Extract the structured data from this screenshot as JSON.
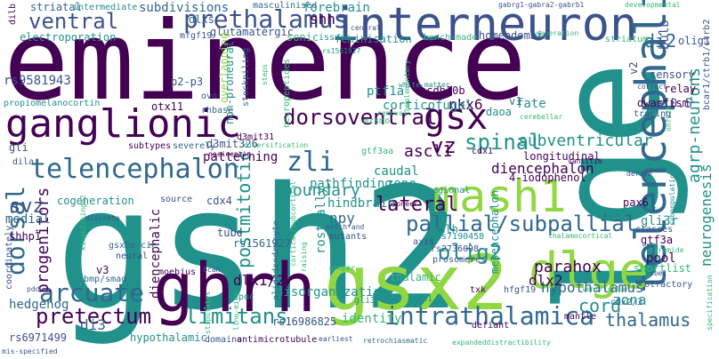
{
  "palette": {
    "purple": "#440154",
    "indigo": "#3b528b",
    "blue": "#31688e",
    "teal": "#21918c",
    "green": "#35b779",
    "lime": "#90d743",
    "yellow": "#fde725"
  },
  "words": [
    {
      "text": "eminence",
      "color": "purple"
    },
    {
      "text": "gsh2",
      "color": "teal"
    },
    {
      "text": "lge",
      "color": "teal"
    },
    {
      "text": "interneuron",
      "color": "indigo"
    },
    {
      "text": "ghrh",
      "color": "purple"
    },
    {
      "text": "gsx2",
      "color": "lime"
    },
    {
      "text": "telencephalic",
      "color": "blue"
    },
    {
      "text": "prethalamus",
      "color": "indigo"
    },
    {
      "text": "ganglionic",
      "color": "purple"
    },
    {
      "text": "mash1",
      "color": "lime"
    },
    {
      "text": "dlge",
      "color": "lime"
    },
    {
      "text": "gsx",
      "color": "purple"
    },
    {
      "text": "ventral",
      "color": "indigo"
    },
    {
      "text": "telencephalon",
      "color": "blue"
    },
    {
      "text": "zli",
      "color": "blue"
    },
    {
      "text": "dorsoventral",
      "color": "purple"
    },
    {
      "text": "pallial/subpallial",
      "color": "blue"
    },
    {
      "text": "arcuate",
      "color": "blue"
    },
    {
      "text": "intrathalamica",
      "color": "blue"
    },
    {
      "text": "pretectum",
      "color": "purple"
    },
    {
      "text": "spinal",
      "color": "teal"
    },
    {
      "text": "olig2",
      "color": "teal"
    },
    {
      "text": "postmitotic",
      "color": "teal"
    },
    {
      "text": "lateral",
      "color": "purple"
    },
    {
      "text": "dorsal",
      "color": "blue"
    },
    {
      "text": "parahox",
      "color": "purple"
    },
    {
      "text": "thalamus",
      "color": "blue"
    },
    {
      "text": "cord",
      "color": "teal"
    },
    {
      "text": "limitans",
      "color": "teal"
    },
    {
      "text": "agrp-neurons",
      "color": "teal"
    },
    {
      "text": "neurogenesis",
      "color": "teal"
    },
    {
      "text": "subventricular",
      "color": "teal"
    },
    {
      "text": "di2",
      "color": "blue"
    },
    {
      "text": "hypothalamus",
      "color": "blue"
    },
    {
      "text": "progenitors",
      "color": "purple"
    },
    {
      "text": "svz",
      "color": "indigo"
    },
    {
      "text": "ascl1",
      "color": "purple"
    },
    {
      "text": "vz",
      "color": "purple"
    },
    {
      "text": "boundary",
      "color": "teal"
    },
    {
      "text": "diencephalic",
      "color": "purple"
    },
    {
      "text": "diencephalon",
      "color": "purple"
    },
    {
      "text": "subdivisions",
      "color": "blue"
    },
    {
      "text": "nkx6",
      "color": "purple"
    },
    {
      "text": "npy",
      "color": "blue"
    },
    {
      "text": "rostrally",
      "color": "teal"
    },
    {
      "text": "zona",
      "color": "teal"
    },
    {
      "text": "dlx1/2",
      "color": "purple"
    },
    {
      "text": "dlx2",
      "color": "purple"
    },
    {
      "text": "di3",
      "color": "blue"
    },
    {
      "text": "hedgehog",
      "color": "blue"
    },
    {
      "text": "hindbrain",
      "color": "teal"
    },
    {
      "text": "corticofugal",
      "color": "teal"
    },
    {
      "text": "patterning",
      "color": "purple"
    },
    {
      "text": "pathfinding",
      "color": "teal"
    },
    {
      "text": "disorganization",
      "color": "teal"
    },
    {
      "text": "identity",
      "color": "green"
    },
    {
      "text": "caudal",
      "color": "teal"
    },
    {
      "text": "zone",
      "color": "teal"
    },
    {
      "text": "fate",
      "color": "teal"
    },
    {
      "text": "bhlh",
      "color": "teal"
    },
    {
      "text": "pax6",
      "color": "purple"
    },
    {
      "text": "gli3r",
      "color": "teal"
    },
    {
      "text": "pool",
      "color": "purple"
    },
    {
      "text": "shortlist",
      "color": "green"
    },
    {
      "text": "gtf3a",
      "color": "purple"
    },
    {
      "text": "ptf1a",
      "color": "teal"
    },
    {
      "text": "pcdh10b",
      "color": "purple"
    },
    {
      "text": "daoa",
      "color": "teal"
    },
    {
      "text": "forebrain",
      "color": "teal"
    },
    {
      "text": "shh",
      "color": "purple"
    },
    {
      "text": "dlxs",
      "color": "blue"
    },
    {
      "text": "sonic",
      "color": "green"
    },
    {
      "text": "glutamatergic",
      "color": "indigo"
    },
    {
      "text": "masculinised",
      "color": "blue"
    },
    {
      "text": "feminisation",
      "color": "teal"
    },
    {
      "text": "striatal",
      "color": "blue"
    },
    {
      "text": "intermediate",
      "color": "teal"
    },
    {
      "text": "dilb",
      "color": "purple"
    },
    {
      "text": "electroporation",
      "color": "teal"
    },
    {
      "text": "rs9581943",
      "color": "indigo"
    },
    {
      "text": "p2-p3",
      "color": "indigo"
    },
    {
      "text": "overlapping",
      "color": "lime"
    },
    {
      "text": "non-proneural",
      "color": "teal"
    },
    {
      "text": "stockpiling",
      "color": "blue"
    },
    {
      "text": "neuropeptides",
      "color": "green"
    },
    {
      "text": "propiomelanocortin",
      "color": "teal"
    },
    {
      "text": "otx11",
      "color": "purple"
    },
    {
      "text": "rhbase",
      "color": "blue"
    },
    {
      "text": "homeodomain",
      "color": "indigo"
    },
    {
      "text": "bench-made",
      "color": "green"
    },
    {
      "text": "issues",
      "color": "teal"
    },
    {
      "text": "e10.5",
      "color": "indigo"
    },
    {
      "text": "olig1",
      "color": "indigo"
    },
    {
      "text": "bulb",
      "color": "indigo"
    },
    {
      "text": "striatum",
      "color": "green"
    },
    {
      "text": "sensory",
      "color": "indigo"
    },
    {
      "text": "relay",
      "color": "purple"
    },
    {
      "text": "dwarfism",
      "color": "purple"
    },
    {
      "text": "tracing",
      "color": "indigo"
    },
    {
      "text": "v1",
      "color": "blue"
    },
    {
      "text": "v2",
      "color": "indigo"
    },
    {
      "text": "longitudinal",
      "color": "purple"
    },
    {
      "text": "gli",
      "color": "indigo"
    },
    {
      "text": "subtypes",
      "color": "purple"
    },
    {
      "text": "severely",
      "color": "blue"
    },
    {
      "text": "d3mit326",
      "color": "indigo"
    },
    {
      "text": "d3mit31",
      "color": "purple"
    },
    {
      "text": "nociceptin",
      "color": "purple"
    },
    {
      "text": "diversification",
      "color": "green"
    },
    {
      "text": "gtf3aa",
      "color": "green"
    },
    {
      "text": "dila",
      "color": "indigo"
    },
    {
      "text": "cdx4",
      "color": "indigo"
    },
    {
      "text": "source",
      "color": "indigo"
    },
    {
      "text": "cogeneration",
      "color": "teal"
    },
    {
      "text": "medial",
      "color": "blue"
    },
    {
      "text": "shhp1",
      "color": "purple"
    },
    {
      "text": "tube",
      "color": "indigo"
    },
    {
      "text": "rs1561927",
      "color": "blue"
    },
    {
      "text": "kingb2/kingb2",
      "color": "green"
    },
    {
      "text": "gsx2e-cie",
      "color": "blue"
    },
    {
      "text": "neural",
      "color": "indigo"
    },
    {
      "text": "mutants",
      "color": "indigo"
    },
    {
      "text": "rs7190458",
      "color": "teal"
    },
    {
      "text": "rs2736098",
      "color": "indigo"
    },
    {
      "text": "v3",
      "color": "purple"
    },
    {
      "text": "bmp/smad",
      "color": "blue"
    },
    {
      "text": "moebius",
      "color": "purple"
    },
    {
      "text": "bcan",
      "color": "indigo"
    },
    {
      "text": "oligodendrocyte",
      "color": "blue"
    },
    {
      "text": "coordinately",
      "color": "indigo"
    },
    {
      "text": "thalamic",
      "color": "green"
    },
    {
      "text": "txk",
      "color": "purple"
    },
    {
      "text": "mesencephalon",
      "color": "teal"
    },
    {
      "text": "gli3",
      "color": "teal"
    },
    {
      "text": "hfgf19",
      "color": "indigo"
    },
    {
      "text": "t31",
      "color": "teal"
    },
    {
      "text": "olfactory",
      "color": "indigo"
    },
    {
      "text": "mantle",
      "color": "purple"
    },
    {
      "text": "cdx2/3",
      "color": "blue"
    },
    {
      "text": "defiant",
      "color": "purple"
    },
    {
      "text": "tpoc",
      "color": "teal"
    },
    {
      "text": "rs16986825",
      "color": "indigo"
    },
    {
      "text": "rs6971499",
      "color": "indigo"
    },
    {
      "text": "hypothalamic",
      "color": "teal"
    },
    {
      "text": "domains",
      "color": "indigo"
    },
    {
      "text": "antimicrotubule",
      "color": "purple"
    },
    {
      "text": "earliest",
      "color": "indigo"
    },
    {
      "text": "retrochiasmatic",
      "color": "blue"
    },
    {
      "text": "expandeddistractibility",
      "color": "green"
    },
    {
      "text": "4-iodophenol",
      "color": "purple"
    },
    {
      "text": "regional",
      "color": "teal"
    },
    {
      "text": "axis",
      "color": "indigo"
    },
    {
      "text": "prosomeres",
      "color": "indigo"
    },
    {
      "text": "classes",
      "color": "indigo"
    },
    {
      "text": "cdx1",
      "color": "purple"
    },
    {
      "text": "vanillin",
      "color": "purple"
    },
    {
      "text": "thalamocortical",
      "color": "green"
    },
    {
      "text": "gabrg1-gabra2-gabrb1",
      "color": "indigo"
    },
    {
      "text": "developmental",
      "color": "green"
    },
    {
      "text": "mfgf19",
      "color": "indigo"
    },
    {
      "text": "rs1561927",
      "color": "teal"
    },
    {
      "text": "generation",
      "color": "green"
    },
    {
      "text": "central",
      "color": "indigo"
    },
    {
      "text": "steps",
      "color": "green"
    },
    {
      "text": "mzsmo",
      "color": "green"
    },
    {
      "text": "complementary",
      "color": "green"
    },
    {
      "text": "removal",
      "color": "green"
    },
    {
      "text": "cerebellar",
      "color": "green"
    },
    {
      "text": "proper",
      "color": "green"
    },
    {
      "text": "pioneer",
      "color": "purple"
    },
    {
      "text": "notch-and",
      "color": "indigo"
    },
    {
      "text": "tyramide",
      "color": "green"
    },
    {
      "text": "distinct",
      "color": "teal"
    },
    {
      "text": "sbe1",
      "color": "indigo"
    },
    {
      "text": "nnf225",
      "color": "green"
    },
    {
      "text": "bcar1/ctrb1/ctrb2",
      "color": "indigo"
    },
    {
      "text": "correct",
      "color": "indigo"
    },
    {
      "text": "specification",
      "color": "green"
    },
    {
      "text": "subpopulations",
      "color": "teal"
    },
    {
      "text": "mis-specified",
      "color": "indigo"
    },
    {
      "text": "ventricular",
      "color": "green"
    },
    {
      "text": "cortical/subcortical",
      "color": "green"
    },
    {
      "text": "pdd",
      "color": "indigo"
    },
    {
      "text": "discrete",
      "color": "indigo"
    },
    {
      "text": "raising",
      "color": "green"
    },
    {
      "text": "stipulates",
      "color": "green"
    },
    {
      "text": "ovo",
      "color": "indigo"
    },
    {
      "text": "line-mice",
      "color": "green"
    },
    {
      "text": "white-matter",
      "color": "teal"
    },
    {
      "text": "derive",
      "color": "indigo"
    }
  ]
}
